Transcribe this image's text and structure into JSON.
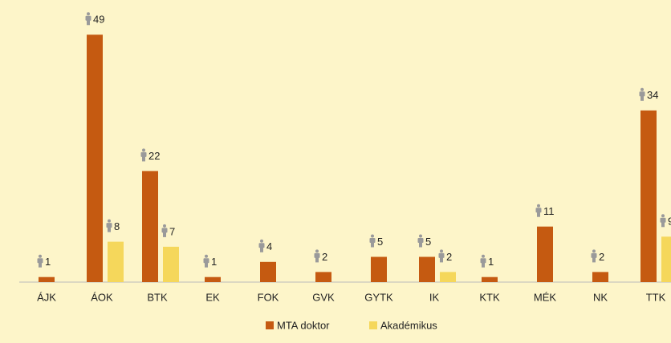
{
  "chart_data": {
    "type": "bar",
    "categories": [
      "ÁJK",
      "ÁOK",
      "BTK",
      "EK",
      "FOK",
      "GVK",
      "GYTK",
      "IK",
      "KTK",
      "MÉK",
      "NK",
      "TTK"
    ],
    "series": [
      {
        "name": "MTA doktor",
        "color": "#c55a11",
        "values": [
          1,
          49,
          22,
          1,
          4,
          2,
          5,
          5,
          1,
          11,
          2,
          34
        ]
      },
      {
        "name": "Akadémikus",
        "color": "#f5d75b",
        "values": [
          null,
          8,
          7,
          null,
          null,
          null,
          null,
          2,
          null,
          null,
          null,
          9
        ]
      }
    ],
    "ylim": [
      0,
      50
    ],
    "legend": "bottom"
  }
}
